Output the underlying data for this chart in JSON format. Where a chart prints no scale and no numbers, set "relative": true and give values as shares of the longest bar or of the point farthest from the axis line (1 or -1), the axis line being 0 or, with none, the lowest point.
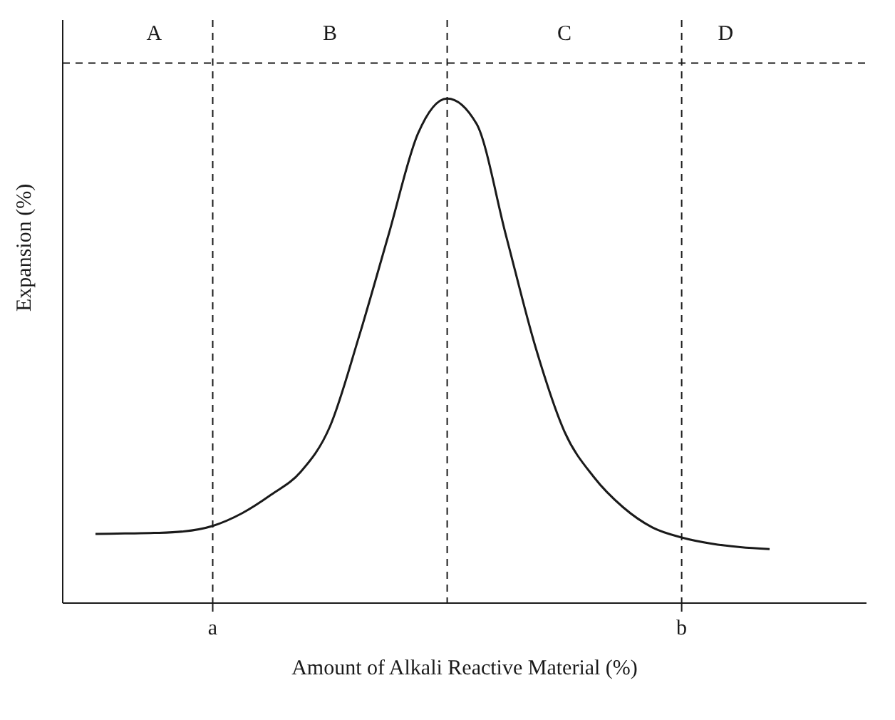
{
  "chart_data": {
    "type": "line",
    "relative": true,
    "xlabel": "Amount of Alkali Reactive Material (%)",
    "ylabel": "Expansion (%)",
    "grid": "x",
    "legend": false,
    "marker": "none",
    "line_style": "solid",
    "categories": [
      null,
      null,
      null,
      null,
      "a",
      null,
      null,
      null,
      null,
      null,
      null,
      null,
      null,
      null,
      null,
      null,
      null,
      null,
      null,
      null,
      "b",
      null,
      null,
      null
    ],
    "series": [
      {
        "color": "#1a1a1a",
        "values": [
          0.137,
          0.138,
          0.139,
          0.142,
          0.153,
          0.178,
          0.215,
          0.26,
          0.35,
          0.53,
          0.73,
          0.93,
          1.0,
          0.95,
          0.73,
          0.51,
          0.34,
          0.25,
          0.19,
          0.15,
          0.13,
          0.118,
          0.111,
          0.107
        ]
      }
    ],
    "ref_lines": [
      {
        "axis": "y",
        "value": 1.07,
        "line_style": "dashed"
      }
    ],
    "annotations": [
      "A",
      "B",
      "C",
      "D"
    ]
  }
}
